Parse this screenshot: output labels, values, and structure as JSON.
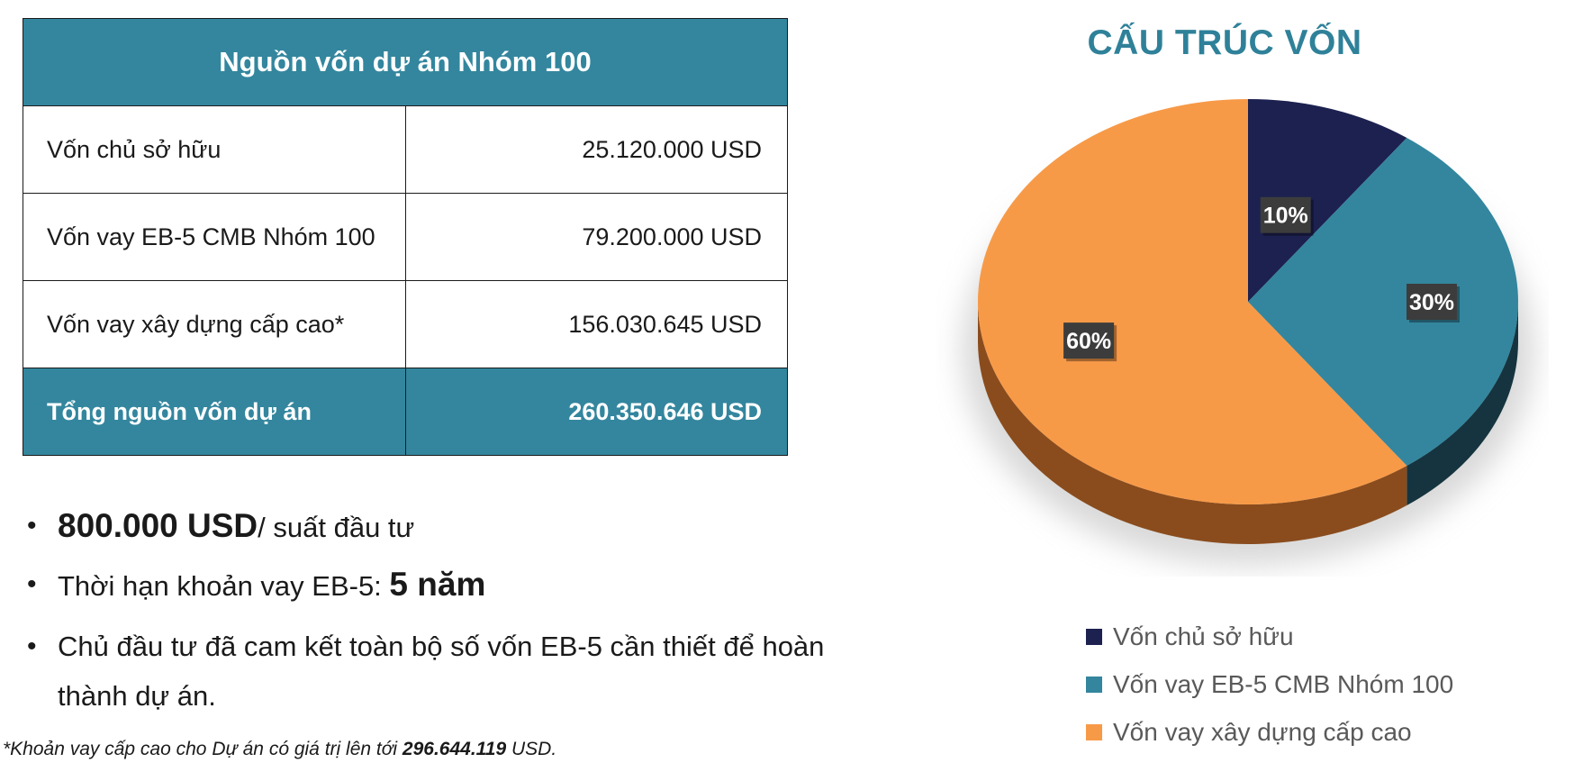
{
  "table": {
    "header": "Nguồn vốn dự án Nhóm 100",
    "rows": [
      {
        "label": "Vốn chủ sở hữu",
        "value": "25.120.000 USD"
      },
      {
        "label": "Vốn vay EB-5 CMB Nhóm 100",
        "value": "79.200.000 USD"
      },
      {
        "label": "Vốn vay xây dựng cấp cao*",
        "value": "156.030.645 USD"
      }
    ],
    "total": {
      "label": "Tổng nguồn vốn dự án",
      "value": "260.350.646 USD"
    }
  },
  "bullets": [
    {
      "strong": "800.000 USD",
      "text": "/ suất đầu tư"
    },
    {
      "text": "Thời hạn khoản vay EB-5: ",
      "strong": "5 năm"
    },
    {
      "text": "Chủ đầu tư đã cam kết toàn bộ số vốn EB-5 cần thiết để hoàn thành dự án."
    }
  ],
  "footnote": {
    "prefix": "*Khoản vay cấp cao cho Dự án có giá trị lên tới ",
    "amount": "296.644.119",
    "suffix": " USD."
  },
  "chart_data": {
    "type": "pie",
    "title": "CẤU TRÚC VỐN",
    "categories": [
      "Vốn chủ sở hữu",
      "Vốn vay EB-5 CMB Nhóm 100",
      "Vốn vay xây dựng cấp cao"
    ],
    "values": [
      10,
      30,
      60
    ],
    "data_labels": [
      "10%",
      "30%",
      "60%"
    ],
    "colors": [
      "#1c2150",
      "#33869e",
      "#f79a48"
    ],
    "side_colors": [
      "#0d1230",
      "#15343f",
      "#8a4c1d"
    ],
    "legend_position": "bottom",
    "style": "3d"
  }
}
